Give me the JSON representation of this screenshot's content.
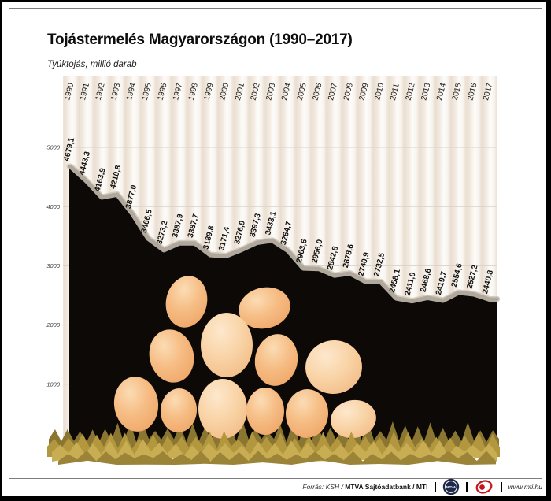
{
  "chart_data": {
    "type": "area",
    "title": "Tojástermelés Magyarországon (1990–2017)",
    "subtitle": "Tyúktojás, millió darab",
    "xlabel": "",
    "ylabel": "",
    "x": [
      "1990",
      "1991",
      "1992",
      "1993",
      "1994",
      "1995",
      "1996",
      "1997",
      "1998",
      "1999",
      "2000",
      "2001",
      "2002",
      "2003",
      "2004",
      "2005",
      "2006",
      "2007",
      "2008",
      "2009",
      "2010",
      "2011",
      "2012",
      "2013",
      "2014",
      "2015",
      "2016",
      "2017"
    ],
    "values": [
      4679.1,
      4443.3,
      4163.9,
      4210.8,
      3877.0,
      3466.5,
      3273.2,
      3387.9,
      3387.7,
      3189.8,
      3171.4,
      3276.9,
      3397.3,
      3433.1,
      3264.7,
      2963.6,
      2956.0,
      2842.8,
      2878.6,
      2740.9,
      2732.5,
      2458.1,
      2411.0,
      2468.6,
      2419.7,
      2554.6,
      2527.2,
      2440.8
    ],
    "value_labels": [
      "4679,1",
      "4443,3",
      "4163,9",
      "4210,8",
      "3877,0",
      "3466,5",
      "3273,2",
      "3387,9",
      "3387,7",
      "3189,8",
      "3171,4",
      "3276,9",
      "3397,3",
      "3433,1",
      "3264,7",
      "2963,6",
      "2956,0",
      "2842,8",
      "2878,6",
      "2740,9",
      "2732,5",
      "2458,1",
      "2411,0",
      "2468,6",
      "2419,7",
      "2554,6",
      "2527,2",
      "2440,8"
    ],
    "ylim": [
      0,
      5000
    ],
    "yticks": [
      0,
      1000,
      2000,
      3000,
      4000,
      5000
    ],
    "grid": true,
    "legend": "none"
  },
  "footer": {
    "source_italic": "Forrás: KSH / ",
    "source_bold": "MTVA Sajtóadatbank / MTI",
    "mtva_text": "MTVA",
    "url": "www.mti.hu",
    "logos": [
      "mtva-badge",
      "mti-badge"
    ]
  },
  "colors": {
    "area_fill": "#0c0907",
    "line": "#b0a89b",
    "line_glow": "#cdc6bb",
    "stripe": "#e9ddcf",
    "grid": "#d8d2ca",
    "egg_base": "#f6bd85",
    "egg_light": "#f9d3a6",
    "grass_dark": "#8a7531",
    "grass_mid": "#b2973f",
    "grass_light": "#c9ad52",
    "grass_fringe": "#9b8337",
    "logo_navy": "#1f2949",
    "logo_red": "#c4161c"
  }
}
